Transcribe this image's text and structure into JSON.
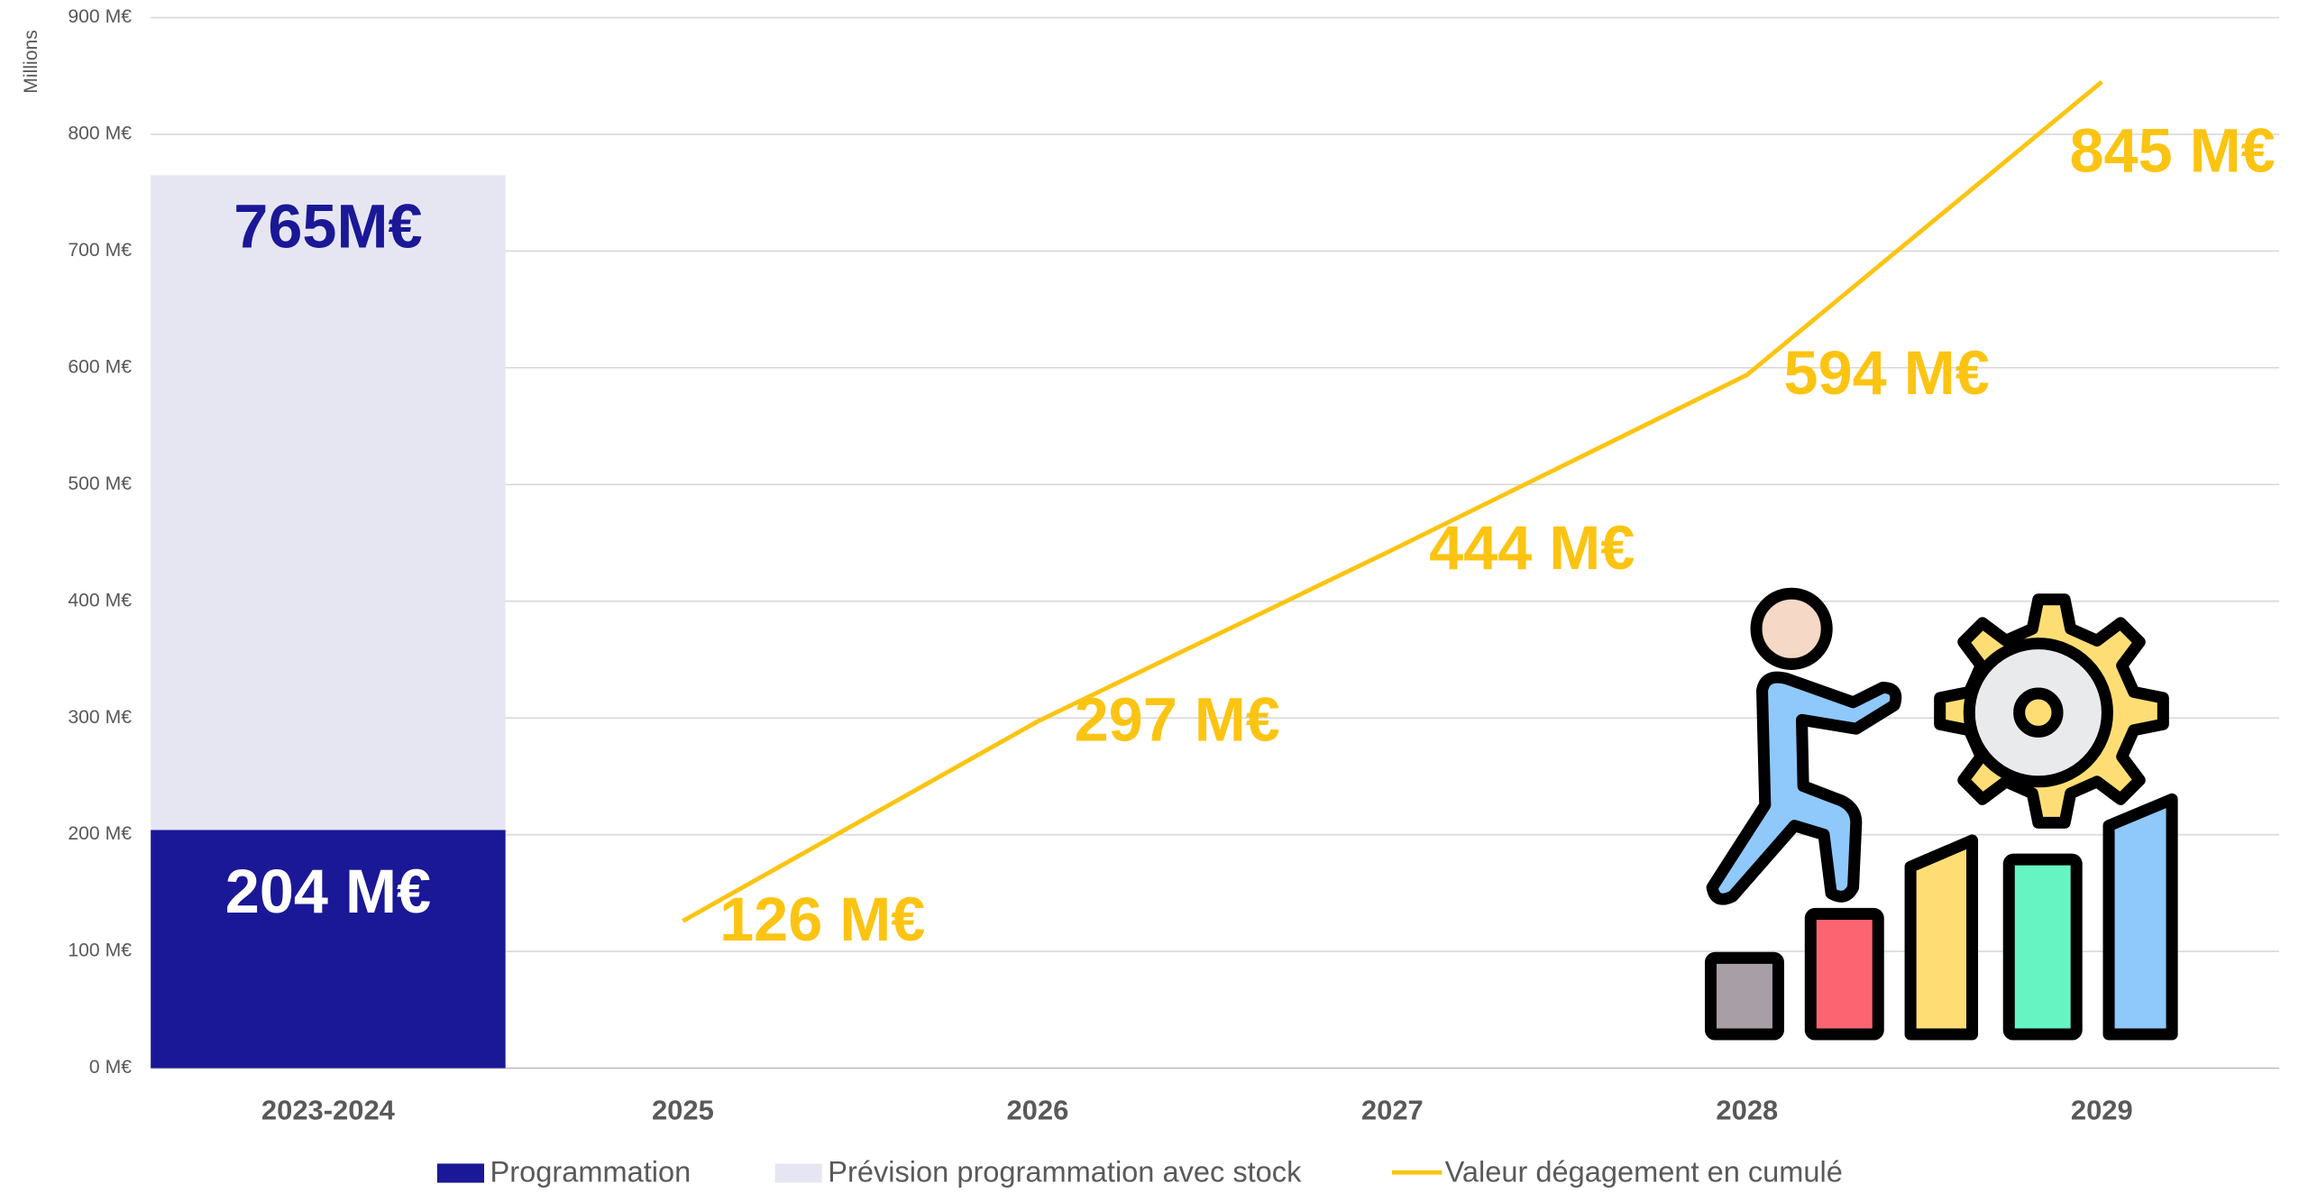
{
  "chart_data": {
    "type": "bar",
    "y_axis_title": "Millions",
    "categories": [
      "2023-2024",
      "2025",
      "2026",
      "2027",
      "2028",
      "2029"
    ],
    "ylim": [
      0,
      900
    ],
    "yticks": [
      {
        "value": 0,
        "label": "0  M€"
      },
      {
        "value": 100,
        "label": "100  M€"
      },
      {
        "value": 200,
        "label": "200  M€"
      },
      {
        "value": 300,
        "label": "300  M€"
      },
      {
        "value": 400,
        "label": "400  M€"
      },
      {
        "value": 500,
        "label": "500  M€"
      },
      {
        "value": 600,
        "label": "600  M€"
      },
      {
        "value": 700,
        "label": "700  M€"
      },
      {
        "value": 800,
        "label": "800  M€"
      },
      {
        "value": 900,
        "label": "900  M€"
      }
    ],
    "grid": true,
    "series": [
      {
        "name": "Programmation",
        "type": "bar",
        "color": "#1a1896",
        "values": [
          204,
          null,
          null,
          null,
          null,
          null
        ],
        "value_labels": [
          "204  M€",
          null,
          null,
          null,
          null,
          null
        ]
      },
      {
        "name": "Prévision programmation avec stock",
        "type": "bar",
        "color": "#e6e6f3",
        "values": [
          765,
          null,
          null,
          null,
          null,
          null
        ],
        "value_labels": [
          "765M€",
          null,
          null,
          null,
          null,
          null
        ]
      },
      {
        "name": "Valeur dégagement en cumulé",
        "type": "line",
        "color": "#fcc412",
        "values": [
          null,
          126,
          297,
          444,
          594,
          845
        ],
        "value_labels": [
          null,
          "126  M€",
          "297  M€",
          "444  M€",
          "594  M€",
          "845  M€"
        ]
      }
    ]
  }
}
